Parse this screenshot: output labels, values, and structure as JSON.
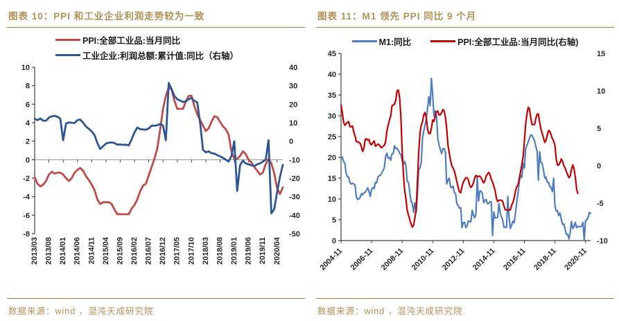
{
  "figures": [
    {
      "title": "图表 10：PPI 和工业企业利润走势较为一致",
      "source": "数据来源：wind ，混沌天成研究院"
    },
    {
      "title": "图表 11：M1 领先 PPI 同比 9 个月",
      "source": "数据来源：wind ，混沌天成研究院"
    }
  ],
  "colors": {
    "title_gold": "#AE9154",
    "rule_gold": "#A08035",
    "fig10_ppi_red": "#BE4B48",
    "fig10_profit_blue": "#2D5493",
    "fig11_m1_blue": "#4F7EC0",
    "fig11_ppi_red": "#C00000"
  },
  "chart_data": [
    {
      "type": "line",
      "title": "图表 10：PPI 和工业企业利润走势较为一致",
      "x_start": "2013-03",
      "x_freq": "monthly",
      "x_count": 88,
      "x_tick_interval": 5,
      "x_tick_labels": [
        "2013/03",
        "2013/08",
        "2014/01",
        "2014/06",
        "2014/11",
        "2015/04",
        "2015/09",
        "2016/02",
        "2016/07",
        "2016/12",
        "2017/05",
        "2017/10",
        "2018/03",
        "2018/08",
        "2019/01",
        "2019/06",
        "2019/11",
        "2020/04"
      ],
      "left_axis": {
        "min": -8,
        "max": 10,
        "step": 2
      },
      "right_axis": {
        "min": -50,
        "max": 40,
        "step": 10
      },
      "grid": false,
      "zero_line_left_axis": true,
      "legend_position": "top-left, stacked rows",
      "series": [
        {
          "name": "PPI:全部工业品:当月同比",
          "axis": "left",
          "color": "#BE4B48",
          "values": [
            -1.9,
            -2.6,
            -2.9,
            -2.7,
            -2.3,
            -1.6,
            -1.3,
            -1.5,
            -1.4,
            -1.4,
            -1.6,
            -2.0,
            -2.3,
            -2.0,
            -1.4,
            -1.1,
            -0.9,
            -1.2,
            -1.8,
            -2.2,
            -2.7,
            -3.3,
            -4.3,
            -4.8,
            -4.6,
            -4.6,
            -4.6,
            -4.8,
            -5.4,
            -5.9,
            -5.9,
            -5.9,
            -5.9,
            -5.9,
            -5.3,
            -4.9,
            -4.3,
            -3.4,
            -2.8,
            -2.6,
            -1.7,
            -0.8,
            0.1,
            1.2,
            3.3,
            5.5,
            6.9,
            7.8,
            7.6,
            6.4,
            5.5,
            5.5,
            5.5,
            6.3,
            6.9,
            6.9,
            5.8,
            4.9,
            4.3,
            3.7,
            3.1,
            3.4,
            4.1,
            4.7,
            4.6,
            4.1,
            3.6,
            3.3,
            2.7,
            0.9,
            0.1,
            0.1,
            0.4,
            0.9,
            0.6,
            0.0,
            -0.3,
            -0.8,
            -1.2,
            -1.6,
            -1.4,
            -0.5,
            0.1,
            -0.4,
            -1.5,
            -3.1,
            -3.7,
            -3.0
          ]
        },
        {
          "name": "工业企业:利润总额:累计值:同比（右轴）",
          "axis": "right",
          "color": "#2D5493",
          "values": [
            12.1,
            11.4,
            12.3,
            11.1,
            11.1,
            12.8,
            13.5,
            13.7,
            13.2,
            12.2,
            0.5,
            9.6,
            10.1,
            10.0,
            9.8,
            11.4,
            11.7,
            10.0,
            7.9,
            6.7,
            5.3,
            3.3,
            -1.0,
            -4.2,
            -2.7,
            -1.3,
            -0.8,
            -0.7,
            -1.0,
            -1.9,
            -1.7,
            -2.0,
            -1.9,
            -2.3,
            1.0,
            4.8,
            7.4,
            6.5,
            6.4,
            6.2,
            6.9,
            8.4,
            8.4,
            8.6,
            9.4,
            8.5,
            0.5,
            31.5,
            28.3,
            24.4,
            22.7,
            22.0,
            21.2,
            21.6,
            22.8,
            23.3,
            21.9,
            21.0,
            10.0,
            -4.6,
            -6.0,
            -5.5,
            -6.5,
            -6.7,
            -7.5,
            -8.2,
            -9.0,
            -10.0,
            -11.0,
            -8.0,
            0.0,
            -26.9,
            -13.0,
            -10.5,
            -12.0,
            -12.5,
            -13.0,
            -13.5,
            -12.5,
            -12.0,
            -11.0,
            -10.0,
            0.5,
            -39.0,
            -36.7,
            -27.4,
            -19.3,
            -12.8
          ]
        }
      ]
    },
    {
      "type": "line",
      "title": "图表 11：M1 领先 PPI 同比 9 个月",
      "x_start": "2004-11",
      "x_freq": "monthly",
      "x_count": 197,
      "x_tick_interval": 24,
      "x_tick_labels": [
        "2004-11",
        "2006-11",
        "2008-11",
        "2010-11",
        "2012-11",
        "2014-11",
        "2016-11",
        "2018-11",
        "2020-11"
      ],
      "left_axis": {
        "min": 0,
        "max": 45,
        "step": 5
      },
      "right_axis": {
        "min": -10,
        "max": 15,
        "step": 5
      },
      "grid": false,
      "zero_line_left_axis": false,
      "legend_position": "top-center, single row",
      "series": [
        {
          "name": "M1:同比",
          "axis": "left",
          "color": "#4F7EC0",
          "lead_months": 9,
          "values_start": "2004-02",
          "note": "series plotted shifted forward 9 months so it starts at the 2004-11 x position",
          "values": [
            19.8,
            20.1,
            19.0,
            18.6,
            16.2,
            15.3,
            15.3,
            13.9,
            13.6,
            13.8,
            13.6,
            13.4,
            10.6,
            9.9,
            10.0,
            10.4,
            11.3,
            11.0,
            11.5,
            11.6,
            12.1,
            12.7,
            11.8,
            10.6,
            12.4,
            12.7,
            12.5,
            14.0,
            13.9,
            15.3,
            15.6,
            15.7,
            16.3,
            16.8,
            17.5,
            20.2,
            21.0,
            19.8,
            20.0,
            19.3,
            20.9,
            20.9,
            22.8,
            22.1,
            22.2,
            21.7,
            21.0,
            20.7,
            19.2,
            18.3,
            19.1,
            18.0,
            14.2,
            14.0,
            11.5,
            9.4,
            8.9,
            6.8,
            9.1,
            6.7,
            10.9,
            17.0,
            17.5,
            18.7,
            24.8,
            26.4,
            27.7,
            29.5,
            32.0,
            34.6,
            32.4,
            39.0,
            35.0,
            29.9,
            31.2,
            29.9,
            24.6,
            22.9,
            21.9,
            20.9,
            22.1,
            22.1,
            21.2,
            13.6,
            14.5,
            15.0,
            12.9,
            12.7,
            13.1,
            11.6,
            11.2,
            8.9,
            8.4,
            7.8,
            7.9,
            3.1,
            4.3,
            4.4,
            3.1,
            3.5,
            4.7,
            4.6,
            4.5,
            7.3,
            6.1,
            5.5,
            6.5,
            15.3,
            9.5,
            11.9,
            11.9,
            11.3,
            9.1,
            9.7,
            9.9,
            8.9,
            8.9,
            9.4,
            9.3,
            1.2,
            6.9,
            5.4,
            5.5,
            5.6,
            8.9,
            6.7,
            5.7,
            4.8,
            3.2,
            3.2,
            3.2,
            10.6,
            5.6,
            2.9,
            3.7,
            4.7,
            4.3,
            6.6,
            9.3,
            11.4,
            14.0,
            15.7,
            15.2,
            18.6,
            17.4,
            22.1,
            22.9,
            23.7,
            24.6,
            25.4,
            25.3,
            24.7,
            23.9,
            22.7,
            21.4,
            14.5,
            21.4,
            18.8,
            18.5,
            17.0,
            15.0,
            15.3,
            14.0,
            14.0,
            13.0,
            12.7,
            11.8,
            15.0,
            8.5,
            7.1,
            7.2,
            6.0,
            6.6,
            5.1,
            3.9,
            4.0,
            2.7,
            1.5,
            1.5,
            0.4,
            2.0,
            4.6,
            2.9,
            3.4,
            4.4,
            3.1,
            3.4,
            3.4,
            3.3,
            3.5,
            4.4,
            0.0,
            4.8,
            5.0,
            5.5,
            6.8,
            6.5
          ]
        },
        {
          "name": "PPI:全部工业品:当月同比(右轴)",
          "axis": "right",
          "color": "#C00000",
          "values_start": "2004-11",
          "values": [
            8.1,
            7.1,
            5.8,
            5.4,
            5.6,
            5.8,
            5.9,
            5.2,
            5.2,
            5.3,
            4.5,
            4.0,
            3.2,
            3.2,
            3.1,
            3.0,
            2.5,
            1.9,
            2.4,
            3.5,
            3.6,
            3.4,
            3.5,
            2.9,
            2.8,
            3.1,
            3.3,
            2.6,
            2.7,
            2.9,
            2.8,
            2.5,
            2.4,
            2.6,
            2.7,
            3.2,
            4.6,
            5.4,
            6.1,
            6.6,
            8.0,
            8.1,
            8.2,
            8.8,
            10.0,
            10.1,
            9.1,
            6.6,
            2.0,
            -1.1,
            -3.3,
            -4.5,
            -6.0,
            -6.6,
            -7.2,
            -7.8,
            -8.2,
            -7.9,
            -7.0,
            -5.8,
            -2.1,
            1.7,
            4.3,
            5.4,
            5.9,
            6.8,
            7.1,
            6.4,
            4.8,
            4.3,
            4.3,
            5.0,
            6.1,
            5.9,
            6.6,
            7.2,
            7.3,
            6.8,
            6.8,
            7.1,
            7.5,
            7.3,
            6.5,
            5.0,
            2.7,
            1.7,
            0.7,
            0.0,
            -0.3,
            -0.7,
            -1.4,
            -2.1,
            -2.9,
            -3.5,
            -3.6,
            -2.8,
            -2.2,
            -1.9,
            -1.6,
            -1.6,
            -1.9,
            -2.6,
            -2.9,
            -2.7,
            -2.3,
            -1.6,
            -1.3,
            -1.5,
            -1.4,
            -1.4,
            -1.6,
            -2.0,
            -2.3,
            -2.0,
            -1.4,
            -1.1,
            -0.9,
            -1.2,
            -1.8,
            -2.2,
            -2.7,
            -3.3,
            -4.3,
            -4.8,
            -4.6,
            -4.6,
            -4.6,
            -4.8,
            -5.4,
            -5.9,
            -5.9,
            -5.9,
            -5.9,
            -5.9,
            -5.3,
            -4.9,
            -4.3,
            -3.4,
            -2.8,
            -2.6,
            -1.7,
            -0.8,
            0.1,
            1.2,
            3.3,
            5.5,
            6.9,
            7.8,
            7.6,
            6.4,
            5.5,
            5.5,
            5.5,
            6.3,
            6.9,
            6.9,
            5.8,
            4.9,
            4.3,
            3.7,
            3.1,
            3.4,
            4.1,
            4.7,
            4.6,
            4.1,
            3.6,
            3.3,
            2.7,
            0.9,
            0.1,
            0.1,
            0.4,
            0.9,
            0.6,
            0.0,
            -0.3,
            -0.8,
            -1.2,
            -1.6,
            -1.4,
            -0.5,
            0.1,
            -0.4,
            -1.5,
            -3.1,
            -3.7
          ]
        }
      ]
    }
  ]
}
